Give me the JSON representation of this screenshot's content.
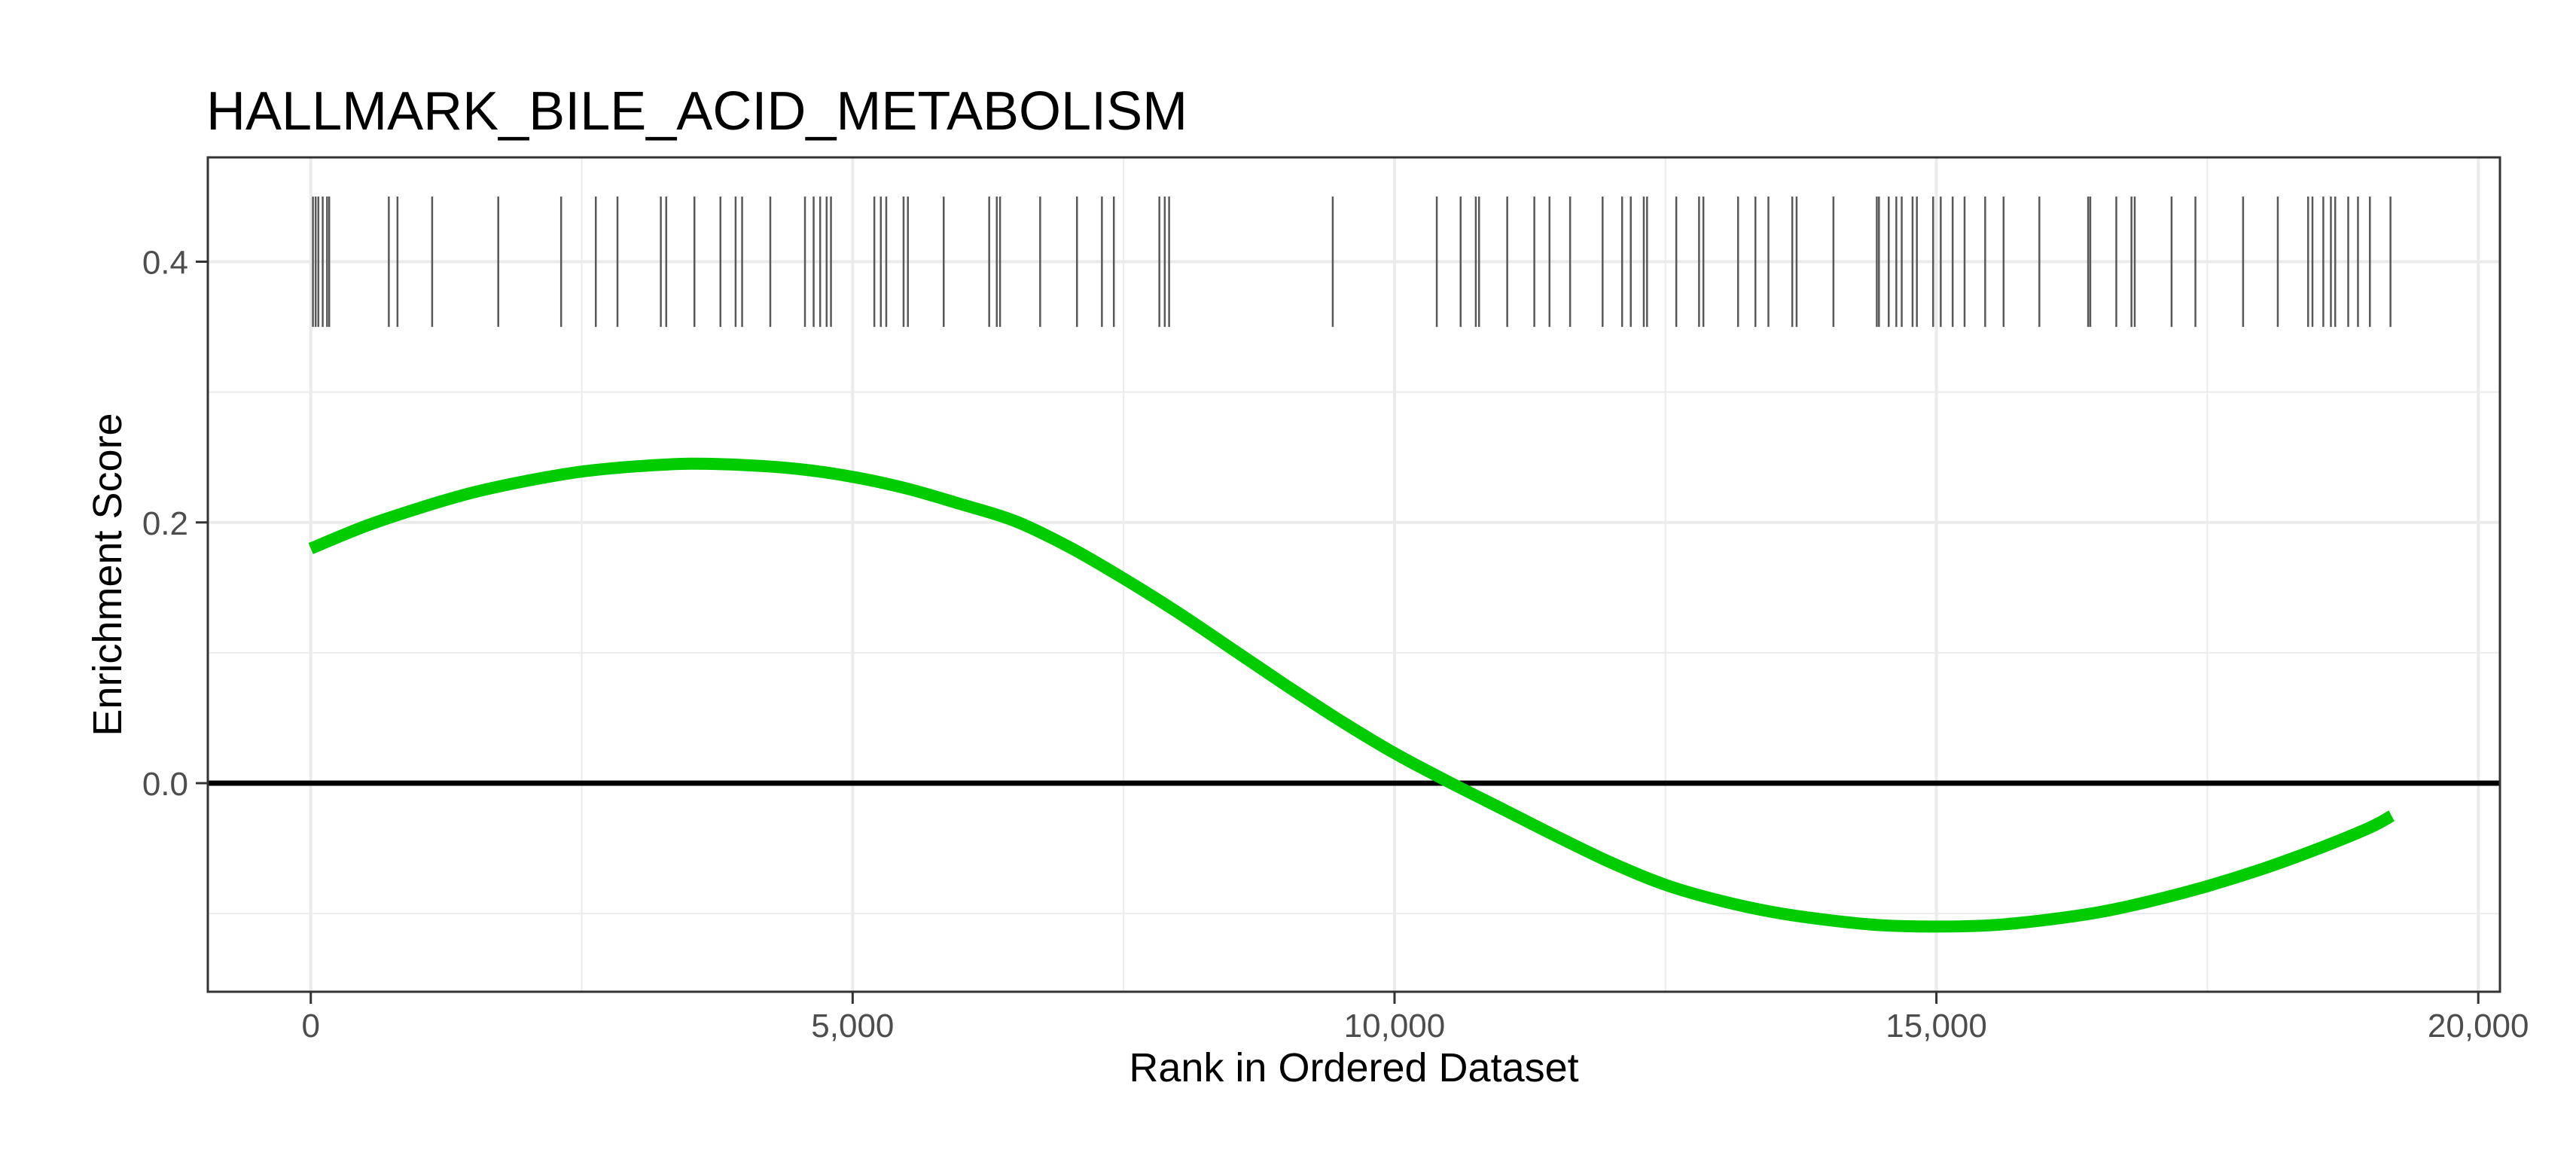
{
  "chart_data": {
    "type": "line",
    "title": "HALLMARK_BILE_ACID_METABOLISM",
    "xlabel": "Rank in Ordered Dataset",
    "ylabel": "Enrichment Score",
    "xlim": [
      -950,
      20200
    ],
    "ylim": [
      -0.16,
      0.48
    ],
    "x_ticks": [
      0,
      5000,
      10000,
      15000,
      20000
    ],
    "x_tick_labels": [
      "0",
      "5,000",
      "10,000",
      "15,000",
      "20,000"
    ],
    "y_ticks": [
      0.0,
      0.2,
      0.4
    ],
    "y_tick_labels": [
      "0.0",
      "0.2",
      "0.4"
    ],
    "grid": true,
    "zero_line": 0.0,
    "line_color": "#00cc00",
    "series": [
      {
        "x": [
          0,
          500,
          1000,
          1500,
          2000,
          2500,
          3000,
          3500,
          4000,
          4500,
          5000,
          5500,
          6000,
          6500,
          7000,
          7500,
          8000,
          8500,
          9000,
          9500,
          10000,
          10500,
          11000,
          11500,
          12000,
          12500,
          13000,
          13500,
          14000,
          14500,
          15000,
          15500,
          16000,
          16500,
          17000,
          17500,
          18000,
          18500,
          19000,
          19200
        ],
        "y": [
          0.18,
          0.197,
          0.211,
          0.223,
          0.232,
          0.239,
          0.243,
          0.245,
          0.244,
          0.241,
          0.235,
          0.226,
          0.214,
          0.201,
          0.181,
          0.157,
          0.131,
          0.103,
          0.075,
          0.048,
          0.023,
          0.001,
          -0.02,
          -0.041,
          -0.061,
          -0.078,
          -0.09,
          -0.099,
          -0.105,
          -0.109,
          -0.11,
          -0.109,
          -0.105,
          -0.099,
          -0.09,
          -0.079,
          -0.066,
          -0.051,
          -0.034,
          -0.025
        ]
      }
    ],
    "hits_band": [
      0.35,
      0.45
    ],
    "hits": [
      20,
      45,
      70,
      110,
      150,
      170,
      720,
      800,
      1120,
      1730,
      2310,
      2630,
      2830,
      3230,
      3280,
      3540,
      3780,
      3920,
      3980,
      4240,
      4560,
      4640,
      4700,
      4760,
      4800,
      5200,
      5260,
      5310,
      5470,
      5510,
      5840,
      6260,
      6330,
      6360,
      6730,
      7070,
      7300,
      7410,
      7830,
      7880,
      7920,
      9430,
      10390,
      10610,
      10750,
      10780,
      11040,
      11290,
      11430,
      11620,
      11920,
      12100,
      12180,
      12300,
      12330,
      12600,
      12810,
      12850,
      13170,
      13330,
      13450,
      13670,
      13710,
      14050,
      14450,
      14470,
      14560,
      14630,
      14680,
      14780,
      14820,
      14970,
      15040,
      15150,
      15260,
      15450,
      15620,
      15950,
      16400,
      16420,
      16660,
      16800,
      16830,
      17170,
      17390,
      17830,
      18150,
      18430,
      18470,
      18570,
      18640,
      18680,
      18800,
      18890,
      19000,
      19190
    ]
  }
}
